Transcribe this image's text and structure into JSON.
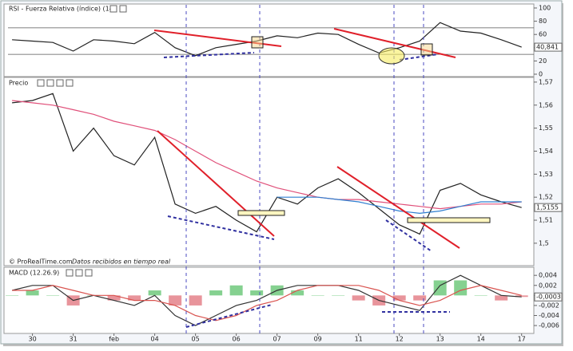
{
  "chart_data": [
    {
      "type": "line",
      "title": "RSI - Fuerza Relativa (índice) (14)",
      "x": [
        -0.5,
        0,
        0.5,
        1,
        1.5,
        2,
        2.5,
        3,
        3.5,
        4,
        4.5,
        5,
        5.5,
        6,
        6.5,
        7,
        7.5,
        8,
        8.5,
        9,
        9.5,
        10,
        10.5,
        11,
        11.5,
        12
      ],
      "series": [
        {
          "color": "#222222",
          "values": [
            52,
            50,
            48,
            35,
            52,
            50,
            46,
            63,
            40,
            28,
            40,
            45,
            50,
            58,
            55,
            62,
            60,
            45,
            32,
            40,
            50,
            78,
            65,
            62,
            52,
            40.841
          ],
          "value_labels": [
            null,
            null,
            null,
            null,
            null,
            null,
            null,
            null,
            null,
            null,
            null,
            null,
            null,
            null,
            null,
            null,
            null,
            null,
            null,
            null,
            null,
            null,
            null,
            null,
            null,
            "40,841"
          ]
        }
      ],
      "ylim": [
        0,
        100
      ],
      "yticks": [
        0,
        20,
        40,
        60,
        80,
        100
      ],
      "hlines": [
        70,
        30
      ]
    },
    {
      "type": "line",
      "title": "Precio",
      "annotations": [
        "© ProRealTime.com",
        "Datos recibidos en tiempo real"
      ],
      "x": [
        -0.5,
        0,
        0.5,
        1,
        1.5,
        2,
        2.5,
        3,
        3.5,
        4,
        4.5,
        5,
        5.5,
        6,
        6.5,
        7,
        7.5,
        8,
        8.5,
        9,
        9.5,
        10,
        10.5,
        11,
        11.5,
        12
      ],
      "series": [
        {
          "color": "#222222",
          "values": [
            1.561,
            1.562,
            1.565,
            1.54,
            1.55,
            1.538,
            1.534,
            1.546,
            1.517,
            1.513,
            1.516,
            1.51,
            1.505,
            1.52,
            1.517,
            1.524,
            1.528,
            1.522,
            1.515,
            1.508,
            1.504,
            1.523,
            1.526,
            1.521,
            1.518,
            1.5155
          ],
          "value_labels": [
            null,
            null,
            null,
            null,
            null,
            null,
            null,
            null,
            null,
            null,
            null,
            null,
            null,
            null,
            null,
            null,
            null,
            null,
            null,
            null,
            null,
            null,
            null,
            null,
            null,
            "1,5155"
          ]
        },
        {
          "color": "#e0507a",
          "values": [
            1.562,
            1.561,
            1.56,
            1.558,
            1.556,
            1.553,
            1.551,
            1.549,
            1.545,
            1.54,
            1.535,
            1.531,
            1.527,
            1.524,
            1.522,
            1.52,
            1.519,
            1.519,
            1.518,
            1.517,
            1.516,
            1.515,
            1.516,
            1.517,
            1.517,
            1.518
          ]
        },
        {
          "color": "#2f7fd0",
          "values": [
            null,
            null,
            null,
            null,
            null,
            null,
            null,
            null,
            null,
            null,
            null,
            null,
            null,
            1.52,
            1.52,
            1.52,
            1.519,
            1.518,
            1.516,
            1.514,
            1.513,
            1.514,
            1.516,
            1.518,
            1.518,
            1.518
          ]
        }
      ],
      "ylim": [
        1.4913,
        1.5717
      ],
      "yticks": [
        {
          "value": 1.5,
          "label": "1,5"
        },
        {
          "value": 1.51,
          "label": "1,51"
        },
        {
          "value": 1.52,
          "label": "1,52"
        },
        {
          "value": 1.53,
          "label": "1,53"
        },
        {
          "value": 1.54,
          "label": "1,54"
        },
        {
          "value": 1.55,
          "label": "1,55"
        },
        {
          "value": 1.56,
          "label": "1,56"
        },
        {
          "value": 1.57,
          "label": "1,57"
        }
      ]
    },
    {
      "type": "line",
      "title": "MACD (12.26.9)",
      "x": [
        -0.5,
        0,
        0.5,
        1,
        1.5,
        2,
        2.5,
        3,
        3.5,
        4,
        4.5,
        5,
        5.5,
        6,
        6.5,
        7,
        7.5,
        8,
        8.5,
        9,
        9.5,
        10,
        10.5,
        11,
        11.5,
        12
      ],
      "series": [
        {
          "type": "bar",
          "color_up": "#5cc26b",
          "color_down": "#e0707a",
          "values": [
            0,
            0.001,
            0,
            -0.002,
            0,
            -0.001,
            -0.001,
            0.001,
            -0.002,
            -0.002,
            0.001,
            0.002,
            0.001,
            0.002,
            0.001,
            0,
            0,
            -0.001,
            -0.002,
            -0.001,
            -0.001,
            0.003,
            0.003,
            0,
            -0.001,
            -0.0003
          ]
        },
        {
          "color": "#333333",
          "values": [
            0.001,
            0.002,
            0.002,
            -0.001,
            0.0,
            -0.001,
            -0.002,
            0.0,
            -0.004,
            -0.006,
            -0.004,
            -0.002,
            -0.001,
            0.001,
            0.002,
            0.002,
            0.002,
            0.001,
            -0.001,
            -0.002,
            -0.003,
            0.002,
            0.004,
            0.002,
            0.0,
            -0.0003
          ],
          "value_labels": [
            null,
            null,
            null,
            null,
            null,
            null,
            null,
            null,
            null,
            null,
            null,
            null,
            null,
            null,
            null,
            null,
            null,
            null,
            null,
            null,
            null,
            null,
            null,
            null,
            null,
            "-0,0003"
          ]
        },
        {
          "color": "#d9534f",
          "values": [
            0.001,
            0.001,
            0.002,
            0.001,
            0.0,
            0.0,
            -0.001,
            -0.001,
            -0.002,
            -0.004,
            -0.005,
            -0.004,
            -0.002,
            -0.001,
            0.001,
            0.002,
            0.002,
            0.002,
            0.001,
            -0.001,
            -0.002,
            -0.001,
            0.001,
            0.002,
            0.001,
            0.0
          ]
        }
      ],
      "ylim": [
        -0.0071,
        0.0053
      ],
      "yticks": [
        {
          "value": 0.004,
          "label": "0,004"
        },
        {
          "value": 0.002,
          "label": "0,002"
        },
        0,
        {
          "value": -0.002,
          "label": "-0,002"
        },
        {
          "value": -0.004,
          "label": "-0,004"
        },
        {
          "value": -0.006,
          "label": "-0,006"
        }
      ],
      "xlim": [
        -0.6,
        12.3
      ],
      "xticks": [
        {
          "value": 0,
          "label": "30"
        },
        {
          "value": 1,
          "label": "31"
        },
        {
          "value": 2,
          "label": "feb"
        },
        {
          "value": 3,
          "label": "04"
        },
        {
          "value": 4,
          "label": "05"
        },
        {
          "value": 5,
          "label": "06"
        },
        {
          "value": 6,
          "label": "07"
        },
        {
          "value": 7,
          "label": "09"
        },
        {
          "value": 8,
          "label": "11"
        },
        {
          "value": 9,
          "label": "12"
        },
        {
          "value": 10,
          "label": "13"
        },
        {
          "value": 11,
          "label": "14"
        },
        {
          "value": 12,
          "label": "17"
        }
      ]
    }
  ]
}
